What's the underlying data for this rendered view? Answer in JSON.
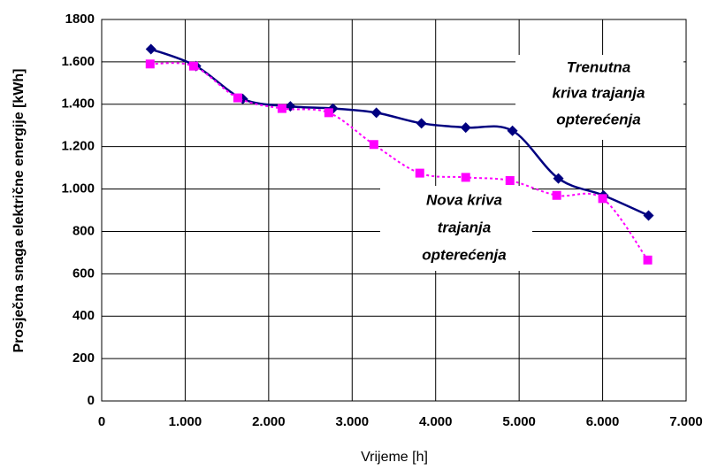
{
  "chart_data": {
    "type": "line",
    "xlabel": "Vrijeme [h]",
    "ylabel": "Prosječna snaga električne energije [kWh]",
    "xlim": [
      0,
      7000
    ],
    "xticks": [
      0,
      {
        "value": 1000,
        "label": "1.000"
      },
      {
        "value": 2000,
        "label": "2.000"
      },
      {
        "value": 3000,
        "label": "3.000"
      },
      {
        "value": 4000,
        "label": "4.000"
      },
      {
        "value": 5000,
        "label": "5.000"
      },
      {
        "value": 6000,
        "label": "6.000"
      },
      {
        "value": 7000,
        "label": "7.000"
      }
    ],
    "ylim": [
      0,
      1800
    ],
    "yticks": [
      0,
      200,
      400,
      600,
      800,
      {
        "value": 1000,
        "label": "1.000"
      },
      {
        "value": 1200,
        "label": "1.200"
      },
      {
        "value": 1400,
        "label": "1.400"
      },
      {
        "value": 1600,
        "label": "1.600"
      },
      1800
    ],
    "grid": true,
    "series": [
      {
        "color": "#000080",
        "marker": "diamond",
        "dash": false,
        "x": [
          590,
          1130,
          1690,
          2260,
          2770,
          3290,
          3830,
          4360,
          4920,
          5470,
          6010,
          6550
        ],
        "values": [
          1660,
          1580,
          1425,
          1390,
          1380,
          1360,
          1310,
          1290,
          1275,
          1050,
          970,
          875
        ]
      },
      {
        "color": "#ff00ff",
        "marker": "square",
        "dash": true,
        "x": [
          580,
          1100,
          1630,
          2160,
          2720,
          3260,
          3810,
          4360,
          4890,
          5450,
          6000,
          6540
        ],
        "values": [
          1590,
          1580,
          1430,
          1380,
          1360,
          1210,
          1075,
          1055,
          1040,
          970,
          955,
          665
        ]
      }
    ],
    "annotations": [
      {
        "lines": [
          "Trenutna",
          "kriva trajanja",
          "opterećenja"
        ]
      },
      {
        "lines": [
          "Nova kriva",
          "trajanja",
          "opterećenja"
        ]
      }
    ]
  }
}
